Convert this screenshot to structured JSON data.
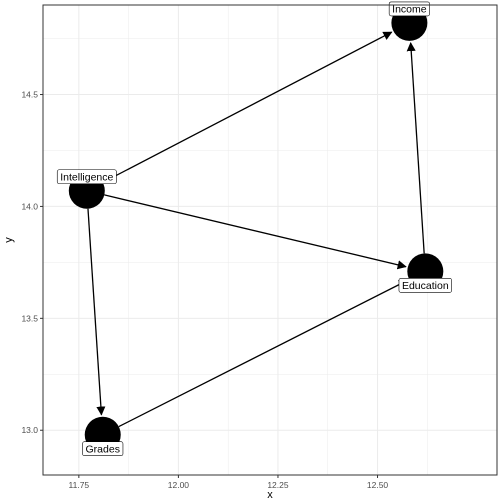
{
  "chart_data": {
    "type": "diagram",
    "xlabel": "x",
    "ylabel": "y",
    "xlim": [
      11.66,
      12.8
    ],
    "ylim": [
      12.8,
      14.9
    ],
    "x_ticks": [
      11.75,
      12.0,
      12.25,
      12.5
    ],
    "x_tick_labels": [
      "11.75",
      "12.00",
      "12.25",
      "12.50"
    ],
    "y_ticks": [
      13.0,
      13.5,
      14.0,
      14.5
    ],
    "y_tick_labels": [
      "13.0",
      "13.5",
      "14.0",
      "14.5"
    ],
    "grid": true,
    "nodes": [
      {
        "id": "intelligence",
        "label": "Intelligence",
        "x": 11.77,
        "y": 14.07,
        "label_anchor": "above"
      },
      {
        "id": "income",
        "label": "Income",
        "x": 12.58,
        "y": 14.82,
        "label_anchor": "above"
      },
      {
        "id": "education",
        "label": "Education",
        "x": 12.62,
        "y": 13.71,
        "label_anchor": "below"
      },
      {
        "id": "grades",
        "label": "Grades",
        "x": 11.81,
        "y": 12.98,
        "label_anchor": "below"
      }
    ],
    "edges": [
      {
        "from": "intelligence",
        "to": "income"
      },
      {
        "from": "intelligence",
        "to": "education"
      },
      {
        "from": "intelligence",
        "to": "grades"
      },
      {
        "from": "grades",
        "to": "education"
      },
      {
        "from": "education",
        "to": "income"
      }
    ],
    "colors": {
      "node_fill": "#000000",
      "edge": "#000000",
      "label_bg": "#ffffff",
      "grid": "#ebebeb",
      "panel_border": "#333333",
      "tick_text": "#4d4d4d"
    }
  }
}
